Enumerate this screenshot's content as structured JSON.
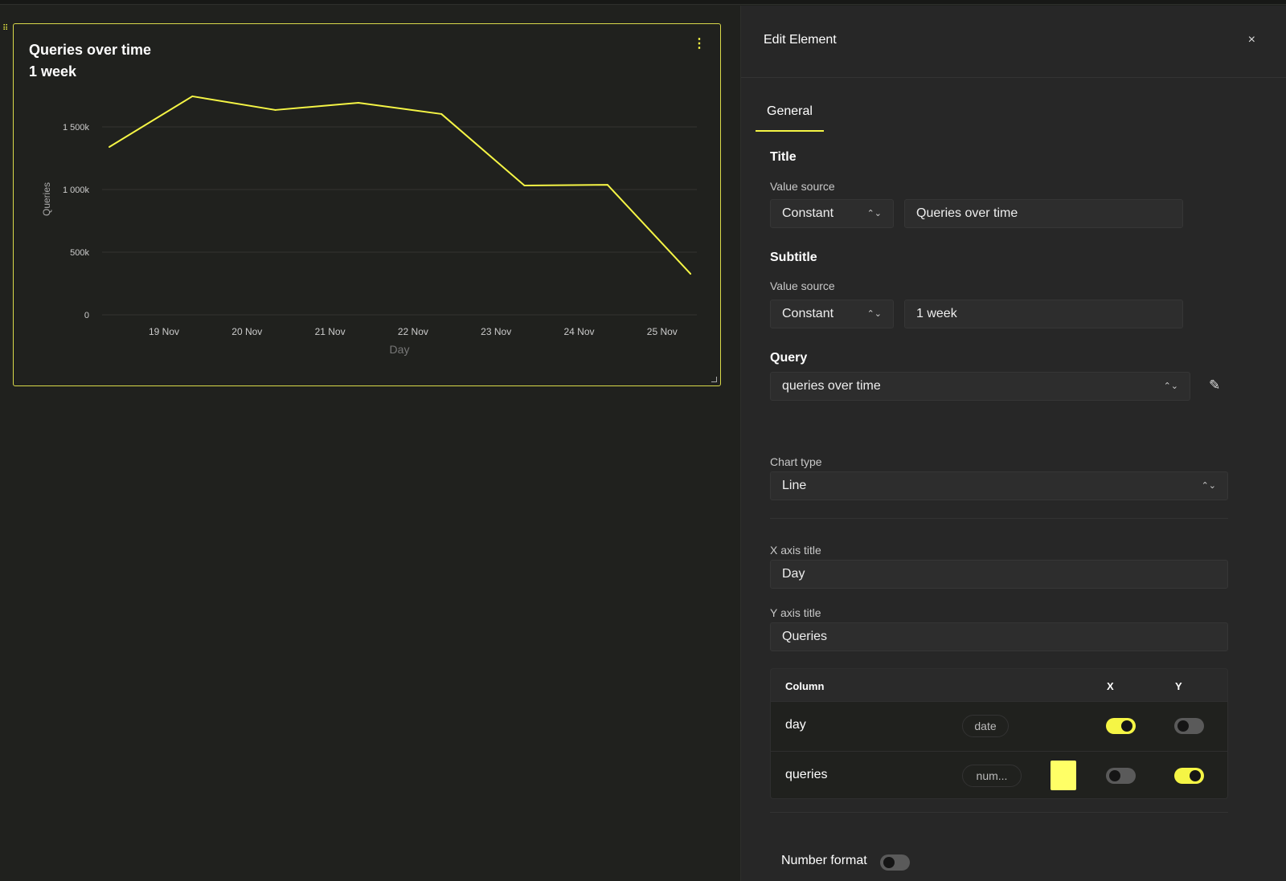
{
  "widget": {
    "title": "Queries over time",
    "subtitle": "1 week"
  },
  "chart_data": {
    "type": "line",
    "xlabel": "Day",
    "ylabel": "Queries",
    "x_ticks": [
      "19 Nov",
      "20 Nov",
      "21 Nov",
      "22 Nov",
      "23 Nov",
      "24 Nov",
      "25 Nov"
    ],
    "y_ticks": [
      "0",
      "500k",
      "1 000k",
      "1 500k"
    ],
    "y_tick_values": [
      0,
      500000,
      1000000,
      1500000
    ],
    "ylim": [
      0,
      1750000
    ],
    "grid": true,
    "color": "#f5f545",
    "x": [
      "18 Nov 08:00",
      "19 Nov 08:00",
      "20 Nov 08:00",
      "21 Nov 08:00",
      "22 Nov 08:00",
      "23 Nov 08:00",
      "24 Nov 08:00",
      "25 Nov 08:00"
    ],
    "values": [
      1340000,
      1744000,
      1635000,
      1692000,
      1603000,
      1032000,
      1038000,
      327000
    ]
  },
  "panel": {
    "title": "Edit Element",
    "close": "×",
    "tab": "General",
    "title_section": "Title",
    "subtitle_section": "Subtitle",
    "query_section": "Query",
    "value_source": "Value source",
    "title_source": "Constant",
    "title_value": "Queries over time",
    "subtitle_source": "Constant",
    "subtitle_value": "1 week",
    "query": "queries over time",
    "chart_type_label": "Chart type",
    "chart_type": "Line",
    "x_axis_label": "X axis title",
    "x_axis_value": "Day",
    "y_axis_label": "Y axis title",
    "y_axis_value": "Queries",
    "columns": {
      "header": {
        "column": "Column",
        "x": "X",
        "y": "Y"
      },
      "rows": [
        {
          "name": "day",
          "type": "date",
          "x": true,
          "y": false
        },
        {
          "name": "queries",
          "type": "num...",
          "color": "#ffff66",
          "x": false,
          "y": true
        }
      ]
    },
    "number_format": "Number format",
    "number_format_on": false
  }
}
